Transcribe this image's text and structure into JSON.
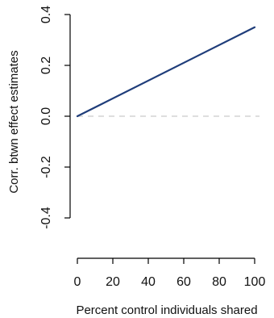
{
  "chart_data": {
    "type": "line",
    "title": "",
    "xlabel": "Percent control individuals shared",
    "ylabel": "Corr. btwn effect estimates",
    "xlim": [
      0,
      100
    ],
    "ylim": [
      -0.4,
      0.4
    ],
    "x_ticks": [
      0,
      20,
      40,
      60,
      80,
      100
    ],
    "x_tick_labels": [
      "0",
      "20",
      "40",
      "60",
      "80",
      "100"
    ],
    "y_ticks": [
      -0.4,
      -0.2,
      0.0,
      0.2,
      0.4
    ],
    "y_tick_labels": [
      "-0.4",
      "-0.2",
      "0.0",
      "0.2",
      "0.4"
    ],
    "grid": false,
    "series": [
      {
        "x": [
          0,
          100
        ],
        "values": [
          0.0,
          0.35
        ],
        "color": "#1f3d7a",
        "style": "solid"
      }
    ],
    "reference_line": {
      "y": 0.0,
      "color": "#d9d9d9",
      "style": "dashed"
    }
  }
}
